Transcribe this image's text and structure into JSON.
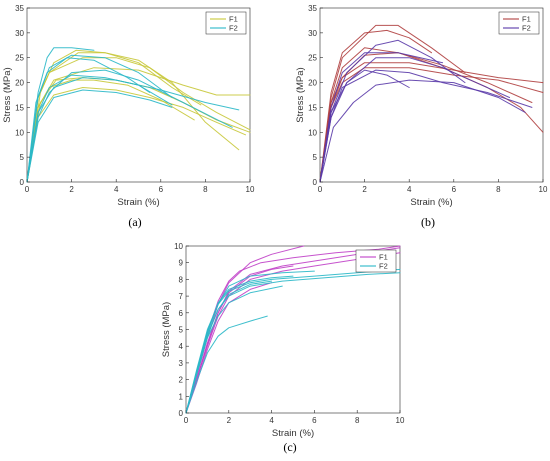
{
  "chart_data": [
    {
      "type": "line",
      "panel_label": "(a)",
      "xlabel": "Strain (%)",
      "ylabel": "Stress (MPa)",
      "xlim": [
        0,
        10
      ],
      "ylim": [
        0,
        35
      ],
      "xticks": [
        0,
        2,
        4,
        6,
        8,
        10
      ],
      "yticks": [
        0,
        5,
        10,
        15,
        20,
        25,
        30,
        35
      ],
      "grid": false,
      "legend_position": "top-right",
      "legend": [
        {
          "name": "F1",
          "color": "#c8c83a"
        },
        {
          "name": "F2",
          "color": "#2ab8c8"
        }
      ],
      "series": [
        {
          "name": "F1",
          "color": "#c8c83a",
          "x": [
            0,
            0.6,
            1.2,
            2.2,
            3.5,
            5,
            6.5,
            7.8
          ],
          "y": [
            0,
            18,
            24,
            26.5,
            26,
            24,
            19,
            15.5
          ]
        },
        {
          "name": "F1",
          "color": "#c8c83a",
          "x": [
            0,
            0.5,
            1,
            2.5,
            4,
            5.5,
            7,
            8.5,
            10
          ],
          "y": [
            0,
            17,
            22,
            25,
            25,
            23,
            18,
            14,
            10.5
          ]
        },
        {
          "name": "F1",
          "color": "#c8c83a",
          "x": [
            0,
            0.5,
            1,
            2,
            3,
            4.5,
            6,
            7.5
          ],
          "y": [
            0,
            15,
            19,
            20.5,
            20.5,
            19.5,
            16.5,
            12.5
          ]
        },
        {
          "name": "F1",
          "color": "#c8c83a",
          "x": [
            0,
            0.5,
            1.2,
            3,
            5,
            7,
            8.5,
            10
          ],
          "y": [
            0,
            15,
            20.5,
            23,
            22.5,
            19.5,
            17.5,
            17.5
          ]
        },
        {
          "name": "F1",
          "color": "#c8c83a",
          "x": [
            0,
            0.6,
            1.3,
            2.5,
            4,
            5.5,
            7,
            8.5,
            10
          ],
          "y": [
            0,
            16,
            20.5,
            21,
            20.5,
            19,
            16,
            12.5,
            10
          ]
        },
        {
          "name": "F1",
          "color": "#c8c83a",
          "x": [
            0,
            0.5,
            1,
            2.3,
            3.5,
            5,
            6.5,
            8,
            9.5
          ],
          "y": [
            0,
            17,
            22,
            26,
            26,
            24.5,
            20,
            12,
            6.5
          ]
        },
        {
          "name": "F1",
          "color": "#c8c83a",
          "x": [
            0,
            0.5,
            1.2,
            2.5,
            4,
            5.5,
            7,
            8.5,
            9.8
          ],
          "y": [
            0,
            13,
            17.5,
            19,
            18.5,
            17,
            15,
            12,
            9.5
          ]
        },
        {
          "name": "F2",
          "color": "#2ab8c8",
          "x": [
            0,
            0.5,
            0.9,
            1.2,
            2,
            3
          ],
          "y": [
            0,
            18,
            25,
            27,
            27,
            26.5
          ]
        },
        {
          "name": "F2",
          "color": "#2ab8c8",
          "x": [
            0,
            0.5,
            1,
            2,
            3.5,
            5,
            6.5
          ],
          "y": [
            0,
            17,
            23,
            25.5,
            25,
            22,
            17
          ]
        },
        {
          "name": "F2",
          "color": "#2ab8c8",
          "x": [
            0,
            0.4,
            0.9,
            1.8,
            3,
            4.5,
            5.5
          ],
          "y": [
            0,
            16,
            22,
            25,
            24.5,
            21,
            18
          ]
        },
        {
          "name": "F2",
          "color": "#2ab8c8",
          "x": [
            0,
            0.5,
            1,
            2,
            3.5,
            5,
            6.5
          ],
          "y": [
            0,
            14,
            19,
            21.5,
            21,
            19.5,
            15.5
          ]
        },
        {
          "name": "F2",
          "color": "#2ab8c8",
          "x": [
            0,
            0.5,
            1.2,
            2.5,
            4,
            6,
            8,
            9.5
          ],
          "y": [
            0,
            14,
            19,
            21,
            20.5,
            18.5,
            16,
            14.5
          ]
        },
        {
          "name": "F2",
          "color": "#2ab8c8",
          "x": [
            0,
            0.5,
            1,
            2,
            3.5,
            5,
            7,
            9.2
          ],
          "y": [
            0,
            13,
            18,
            22,
            22.5,
            20.5,
            16,
            11
          ]
        },
        {
          "name": "F2",
          "color": "#2ab8c8",
          "x": [
            0,
            0.5,
            1.2,
            2.5,
            4,
            5.5,
            6.5
          ],
          "y": [
            0,
            12,
            17,
            18.5,
            18,
            16.5,
            15
          ]
        }
      ]
    },
    {
      "type": "line",
      "panel_label": "(b)",
      "xlabel": "Strain (%)",
      "ylabel": "Stress (MPa)",
      "xlim": [
        0,
        10
      ],
      "ylim": [
        0,
        35
      ],
      "xticks": [
        0,
        2,
        4,
        6,
        8,
        10
      ],
      "yticks": [
        0,
        5,
        10,
        15,
        20,
        25,
        30,
        35
      ],
      "grid": false,
      "legend_position": "top-right",
      "legend": [
        {
          "name": "F1",
          "color": "#b04040"
        },
        {
          "name": "F2",
          "color": "#5a3aa8"
        }
      ],
      "series": [
        {
          "name": "F1",
          "color": "#b04040",
          "x": [
            0,
            0.5,
            1,
            2,
            3,
            4,
            5
          ],
          "y": [
            0,
            18,
            26,
            30,
            30.5,
            29,
            26
          ]
        },
        {
          "name": "F1",
          "color": "#b04040",
          "x": [
            0,
            0.5,
            1,
            2.5,
            3.5,
            5,
            6.5
          ],
          "y": [
            0,
            17,
            25,
            31.5,
            31.5,
            27,
            22
          ]
        },
        {
          "name": "F1",
          "color": "#b04040",
          "x": [
            0,
            0.5,
            1,
            2,
            3.5,
            5.5,
            7.5,
            9,
            10
          ],
          "y": [
            0,
            16,
            23,
            27,
            26,
            23,
            19,
            15,
            10
          ]
        },
        {
          "name": "F1",
          "color": "#b04040",
          "x": [
            0,
            0.5,
            1,
            2,
            4,
            6,
            8,
            10
          ],
          "y": [
            0,
            16,
            21,
            24,
            24,
            22.5,
            21,
            20
          ]
        },
        {
          "name": "F1",
          "color": "#b04040",
          "x": [
            0,
            0.5,
            1,
            2,
            4,
            6,
            8,
            10
          ],
          "y": [
            0,
            15,
            20,
            23,
            23,
            21.5,
            20.5,
            18
          ]
        },
        {
          "name": "F1",
          "color": "#b04040",
          "x": [
            0,
            0.5,
            1,
            2,
            3.5,
            5.5,
            7.5,
            9.5
          ],
          "y": [
            0,
            15,
            21,
            25.5,
            26,
            23.5,
            20,
            16
          ]
        },
        {
          "name": "F2",
          "color": "#5a3aa8",
          "x": [
            0,
            0.5,
            1.2,
            2.5,
            4,
            5.5,
            7,
            8.5
          ],
          "y": [
            0,
            13,
            20,
            25,
            25,
            23,
            20,
            17
          ]
        },
        {
          "name": "F2",
          "color": "#5a3aa8",
          "x": [
            0,
            0.5,
            1.2,
            2.5,
            3.5,
            5,
            6.5
          ],
          "y": [
            0,
            14,
            22,
            27.5,
            28.5,
            25,
            20
          ]
        },
        {
          "name": "F2",
          "color": "#5a3aa8",
          "x": [
            0,
            0.5,
            1.2,
            2,
            3,
            4
          ],
          "y": [
            0,
            14,
            20,
            22.5,
            21.5,
            19
          ]
        },
        {
          "name": "F2",
          "color": "#5a3aa8",
          "x": [
            0,
            0.5,
            1,
            2,
            3.5,
            5.5
          ],
          "y": [
            0,
            15,
            22,
            26,
            26,
            24
          ]
        },
        {
          "name": "F2",
          "color": "#5a3aa8",
          "x": [
            0,
            0.5,
            1,
            2.5,
            4,
            5.5,
            7.5,
            9.5
          ],
          "y": [
            0,
            13,
            19,
            22.5,
            22,
            20,
            18,
            15
          ]
        },
        {
          "name": "F2",
          "color": "#5a3aa8",
          "x": [
            0,
            0.6,
            1.5,
            2.5,
            4,
            6,
            8,
            9.2
          ],
          "y": [
            0,
            11,
            16,
            19.5,
            20.5,
            20,
            17,
            14
          ]
        }
      ]
    },
    {
      "type": "line",
      "panel_label": "(c)",
      "xlabel": "Strain (%)",
      "ylabel": "Stress (MPa)",
      "xlim": [
        0,
        10
      ],
      "ylim": [
        0,
        10
      ],
      "xticks": [
        0,
        2,
        4,
        6,
        8,
        10
      ],
      "yticks": [
        0,
        1,
        2,
        3,
        4,
        5,
        6,
        7,
        8,
        9,
        10
      ],
      "grid": false,
      "legend_position": "top-right",
      "legend": [
        {
          "name": "F1",
          "color": "#c040c8"
        },
        {
          "name": "F2",
          "color": "#2ab8c8"
        }
      ],
      "series": [
        {
          "name": "F1",
          "color": "#c040c8",
          "x": [
            0,
            0.5,
            1,
            1.5,
            2,
            2.5,
            3.5,
            5,
            7,
            9,
            10
          ],
          "y": [
            0,
            2.5,
            4.8,
            6.7,
            7.9,
            8.5,
            9,
            9.3,
            9.6,
            9.8,
            10
          ]
        },
        {
          "name": "F1",
          "color": "#c040c8",
          "x": [
            0,
            0.5,
            1,
            1.5,
            2,
            3,
            4,
            5.5
          ],
          "y": [
            0,
            2.2,
            4.5,
            6.5,
            7.8,
            9,
            9.5,
            10
          ]
        },
        {
          "name": "F1",
          "color": "#c040c8",
          "x": [
            0,
            0.5,
            1,
            1.5,
            2,
            3,
            4,
            5
          ],
          "y": [
            0,
            2,
            4.2,
            6,
            7.2,
            8.2,
            8.6,
            8.8
          ]
        },
        {
          "name": "F1",
          "color": "#c040c8",
          "x": [
            0,
            0.5,
            1,
            1.5,
            2,
            3,
            4.5,
            6,
            8,
            10
          ],
          "y": [
            0,
            2,
            4,
            5.8,
            7,
            8,
            8.5,
            8.8,
            9.2,
            9.6
          ]
        },
        {
          "name": "F1",
          "color": "#c040c8",
          "x": [
            0,
            0.5,
            1,
            1.5,
            2,
            3,
            4
          ],
          "y": [
            0,
            1.8,
            3.8,
            5.5,
            6.6,
            7.4,
            7.8
          ]
        },
        {
          "name": "F1",
          "color": "#c040c8",
          "x": [
            0,
            0.5,
            1,
            1.5,
            2,
            3,
            4.5,
            6.5,
            8.5,
            10
          ],
          "y": [
            0,
            2,
            4.1,
            6,
            7.3,
            8.3,
            8.8,
            9.2,
            9.6,
            9.9
          ]
        },
        {
          "name": "F2",
          "color": "#2ab8c8",
          "x": [
            0,
            0.5,
            1,
            1.5,
            2,
            3,
            4,
            6,
            8,
            10
          ],
          "y": [
            0,
            2.6,
            5,
            6.5,
            7.3,
            7.8,
            8,
            8.2,
            8.4,
            8.6
          ]
        },
        {
          "name": "F2",
          "color": "#2ab8c8",
          "x": [
            0,
            0.5,
            1,
            1.5,
            2,
            3,
            4.5,
            6
          ],
          "y": [
            0,
            2.4,
            4.8,
            6.5,
            7.6,
            8.2,
            8.4,
            8.5
          ]
        },
        {
          "name": "F2",
          "color": "#2ab8c8",
          "x": [
            0,
            0.5,
            1,
            1.5,
            2,
            3,
            4
          ],
          "y": [
            0,
            2.3,
            4.6,
            6.2,
            7.1,
            7.7,
            7.9
          ]
        },
        {
          "name": "F2",
          "color": "#2ab8c8",
          "x": [
            0,
            0.5,
            1,
            1.5,
            2,
            3,
            4.5
          ],
          "y": [
            0,
            2.3,
            4.5,
            5.8,
            6.6,
            7.2,
            7.6
          ]
        },
        {
          "name": "F2",
          "color": "#2ab8c8",
          "x": [
            0,
            0.5,
            1,
            1.5,
            2,
            3,
            4,
            5
          ],
          "y": [
            0,
            2.5,
            4.9,
            6.6,
            7.4,
            7.9,
            8.1,
            8.2
          ]
        },
        {
          "name": "F2",
          "color": "#2ab8c8",
          "x": [
            0,
            0.5,
            1,
            1.5,
            2,
            3,
            3.8
          ],
          "y": [
            0,
            1.9,
            3.6,
            4.6,
            5.1,
            5.5,
            5.8
          ]
        },
        {
          "name": "F2",
          "color": "#2ab8c8",
          "x": [
            0,
            0.5,
            1,
            1.5,
            2,
            3,
            4.5,
            6.5,
            8.5,
            10
          ],
          "y": [
            0,
            2.4,
            4.7,
            6.2,
            7,
            7.6,
            7.9,
            8.1,
            8.3,
            8.4
          ]
        }
      ]
    }
  ]
}
